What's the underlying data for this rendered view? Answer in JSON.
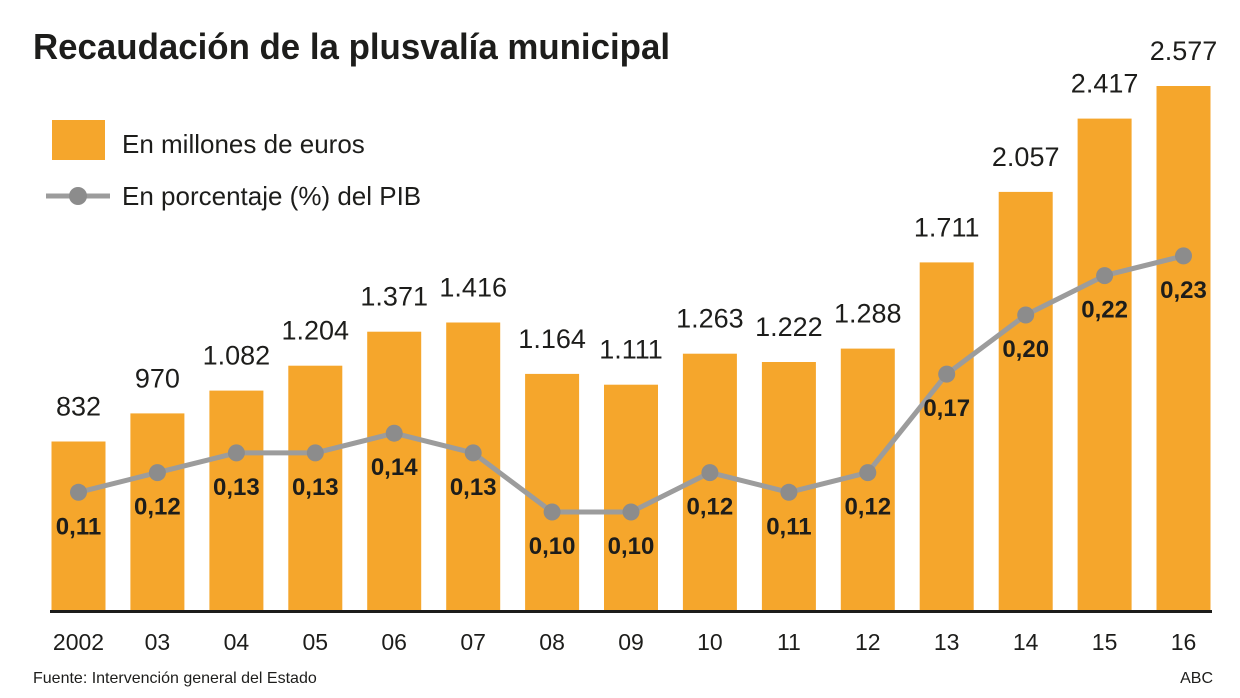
{
  "title": "Recaudación de la plusvalía municipal",
  "footer": {
    "source": "Fuente: Intervención general del Estado",
    "credit": "ABC"
  },
  "colors": {
    "bar": "#F5A62C",
    "line": "#9C9C9C",
    "dot": "#8C8C8C",
    "text": "#1D1D1B",
    "axis": "#1D1D1B"
  },
  "chart_data": {
    "type": "bar",
    "combo": "bar+line",
    "title": "Recaudación de la plusvalía municipal",
    "xlabel": "",
    "ylabel": "",
    "categories": [
      "2002",
      "03",
      "04",
      "05",
      "06",
      "07",
      "08",
      "09",
      "10",
      "11",
      "12",
      "13",
      "14",
      "15",
      "16"
    ],
    "series": [
      {
        "name": "En millones de euros",
        "type": "bar",
        "values": [
          832,
          970,
          1082,
          1204,
          1371,
          1416,
          1164,
          1111,
          1263,
          1222,
          1288,
          1711,
          2057,
          2417,
          2577
        ],
        "labels": [
          "832",
          "970",
          "1.082",
          "1.204",
          "1.371",
          "1.416",
          "1.164",
          "1.111",
          "1.263",
          "1.222",
          "1.288",
          "1.711",
          "2.057",
          "2.417",
          "2.577"
        ]
      },
      {
        "name": "En porcentaje (%) del PIB",
        "type": "line",
        "values": [
          0.11,
          0.12,
          0.13,
          0.13,
          0.14,
          0.13,
          0.1,
          0.1,
          0.12,
          0.11,
          0.12,
          0.17,
          0.2,
          0.22,
          0.23
        ],
        "labels": [
          "0,11",
          "0,12",
          "0,13",
          "0,13",
          "0,14",
          "0,13",
          "0,10",
          "0,10",
          "0,12",
          "0,11",
          "0,12",
          "0,17",
          "0,20",
          "0,22",
          "0,23"
        ]
      }
    ],
    "ylim_bar": [
      0,
      2630
    ],
    "ylim_line": [
      0,
      0.32
    ],
    "legend_position": "top-left",
    "grid": false,
    "data_labels": true
  }
}
